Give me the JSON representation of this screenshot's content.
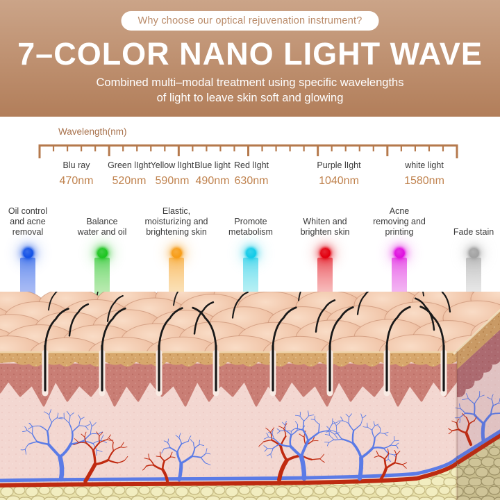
{
  "badge": {
    "text": "Why choose our optical rejuvenation instrument?"
  },
  "header": {
    "title": "7–COLOR NANO LIGHT WAVE",
    "subtitle_line1": "Combined multi–modal treatment using specific wavelengths",
    "subtitle_line2": "of light to leave skin soft and glowing"
  },
  "ruler": {
    "label": "Wavelength(nm)"
  },
  "wavelengths": [
    {
      "name": "Blu ray",
      "value": "470nm"
    },
    {
      "name": "Green lIght",
      "value": "520nm"
    },
    {
      "name": "Yellow lIght",
      "value": "590nm"
    },
    {
      "name": "Blue light",
      "value": "490nm"
    },
    {
      "name": "Red lIght",
      "value": "630nm"
    },
    {
      "name": "Purple lIght",
      "value": "1040nm"
    },
    {
      "name": "white light",
      "value": "1580nm"
    }
  ],
  "lights": [
    {
      "name": "blue",
      "benefit_lines": [
        "Oil control",
        "and acne",
        "removal"
      ],
      "core": "#1452e6",
      "beam": "#4f74ea"
    },
    {
      "name": "green",
      "benefit_lines": [
        "Balance",
        "water and oil"
      ],
      "core": "#1fc522",
      "beam": "#6ed45c"
    },
    {
      "name": "yellow",
      "benefit_lines": [
        "Elastic,",
        "moisturizing and",
        "brightening skin"
      ],
      "core": "#f79d18",
      "beam": "#f6c06a"
    },
    {
      "name": "cyan",
      "benefit_lines": [
        "Promote",
        "metabolism"
      ],
      "core": "#14cbe8",
      "beam": "#6adfe8"
    },
    {
      "name": "red",
      "benefit_lines": [
        "Whiten and",
        "brighten skin"
      ],
      "core": "#e2000f",
      "beam": "#ee7272"
    },
    {
      "name": "purple",
      "benefit_lines": [
        "Acne",
        "removing and",
        "printing"
      ],
      "core": "#df12df",
      "beam": "#e566e5"
    },
    {
      "name": "white",
      "benefit_lines": [
        "Fade stain"
      ],
      "core": "#a3a3a3",
      "beam": "#cccccc"
    }
  ],
  "colors": {
    "background_top": "#cba488",
    "background_bottom": "#b27e5a",
    "badge_text": "#b98a68",
    "axis_brown": "#a7704a",
    "ruler_brown": "#b5794c",
    "value_orange": "#c0834f",
    "label_dark": "#3a3a3a",
    "hero_text": "#ffffff"
  }
}
